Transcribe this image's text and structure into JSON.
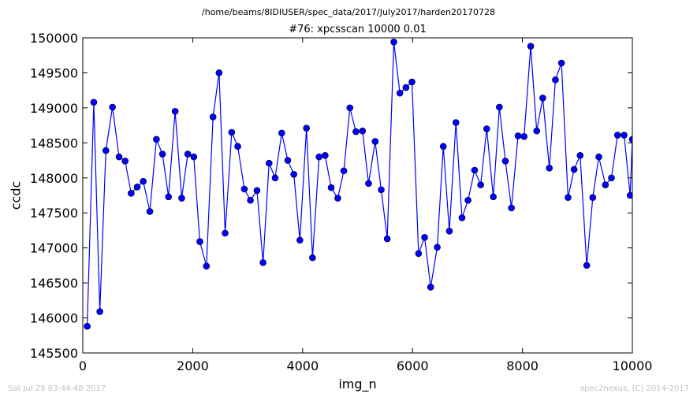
{
  "chart_data": {
    "type": "line",
    "suptitle": "/home/beams/8IDIUSER/spec_data/2017/July2017/harden20170728",
    "title": "#76: xpcsscan 10000 0.01",
    "xlabel": "img_n",
    "ylabel": "ccdc",
    "xlim": [
      0,
      10000
    ],
    "ylim": [
      145500,
      150000
    ],
    "xticks": [
      0,
      2000,
      4000,
      6000,
      8000,
      10000
    ],
    "yticks": [
      145500,
      146000,
      146500,
      147000,
      147500,
      148000,
      148500,
      149000,
      149500,
      150000
    ],
    "grid": false,
    "marker": "circle",
    "colors": {
      "line": "#0000ff",
      "marker": "#0000ff",
      "marker_edge": "#000000"
    },
    "series": [
      {
        "x": [
          80,
          200,
          310,
          420,
          540,
          660,
          770,
          880,
          990,
          1100,
          1220,
          1340,
          1450,
          1560,
          1680,
          1800,
          1910,
          2020,
          2130,
          2250,
          2370,
          2480,
          2590,
          2710,
          2820,
          2940,
          3050,
          3170,
          3280,
          3390,
          3500,
          3620,
          3730,
          3840,
          3950,
          4070,
          4180,
          4300,
          4410,
          4520,
          4640,
          4750,
          4860,
          4970,
          5090,
          5200,
          5320,
          5430,
          5540,
          5660,
          5770,
          5880,
          5990,
          6110,
          6220,
          6330,
          6450,
          6560,
          6670,
          6790,
          6900,
          7010,
          7130,
          7240,
          7350,
          7470,
          7580,
          7690,
          7800,
          7920,
          8030,
          8150,
          8260,
          8370,
          8490,
          8600,
          8710,
          8830,
          8940,
          9050,
          9170,
          9280,
          9390,
          9510,
          9620,
          9730,
          9850,
          9960,
          10000
        ],
        "values": [
          145880,
          149080,
          146090,
          148390,
          149010,
          148300,
          148240,
          147780,
          147870,
          147950,
          147520,
          148550,
          148340,
          147730,
          148950,
          147710,
          148340,
          148300,
          147090,
          146740,
          148870,
          149500,
          147210,
          148650,
          148450,
          147840,
          147680,
          147820,
          146790,
          148210,
          148000,
          148640,
          148250,
          148050,
          147110,
          148710,
          146860,
          148300,
          148320,
          147860,
          147710,
          148100,
          149000,
          148660,
          148670,
          147920,
          148520,
          147830,
          147130,
          149940,
          149210,
          149290,
          149370,
          146920,
          147150,
          146440,
          147010,
          148450,
          147240,
          148790,
          147430,
          147680,
          148110,
          147900,
          148700,
          147730,
          149010,
          148240,
          147570,
          148600,
          148590,
          149880,
          148670,
          149140,
          148140,
          149400,
          149640,
          147720,
          148120,
          148320,
          146750,
          147720,
          148300,
          147900,
          148000,
          148610,
          148610,
          147750,
          148550
        ]
      }
    ]
  },
  "footer": {
    "left": "Sat Jul 29 03:44:48 2017",
    "right": "spec2nexus, (C) 2014-2017"
  }
}
